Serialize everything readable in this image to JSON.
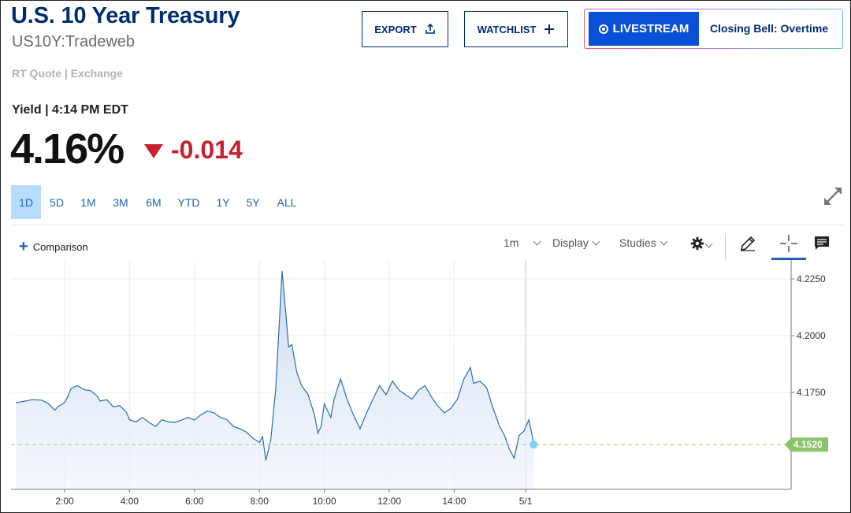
{
  "header": {
    "title": "U.S. 10 Year Treasury",
    "symbol": "US10Y:Tradeweb",
    "quote_source": "RT Quote | Exchange",
    "export_label": "EXPORT",
    "watchlist_label": "WATCHLIST",
    "livestream_label": "LIVESTREAM",
    "livestream_show": "Closing Bell: Overtime"
  },
  "quote": {
    "label": "Yield | 4:14 PM EDT",
    "price": "4.16%",
    "change": "-0.014",
    "change_color": "#c8202f"
  },
  "ranges": [
    {
      "label": "1D",
      "active": true
    },
    {
      "label": "5D",
      "active": false
    },
    {
      "label": "1M",
      "active": false
    },
    {
      "label": "3M",
      "active": false
    },
    {
      "label": "6M",
      "active": false
    },
    {
      "label": "YTD",
      "active": false
    },
    {
      "label": "1Y",
      "active": false
    },
    {
      "label": "5Y",
      "active": false
    },
    {
      "label": "ALL",
      "active": false
    }
  ],
  "toolbar": {
    "comparison_label": "Comparison",
    "interval_label": "1m",
    "display_label": "Display",
    "studies_label": "Studies",
    "icons": [
      "gear-icon",
      "pencil-icon",
      "crosshair-icon",
      "comment-icon",
      "expand-icon"
    ]
  },
  "colors": {
    "brand": "#002d72",
    "accent": "#1d64b5",
    "live": "#0a50d6",
    "line": "#2a6db0",
    "last_tag": "#8cc26a"
  },
  "chart_data": {
    "type": "area",
    "x_ticks": [
      "2:00",
      "4:00",
      "6:00",
      "8:00",
      "10:00",
      "12:00",
      "14:00",
      "5/1"
    ],
    "y_ticks": [
      "4.2250",
      "4.2000",
      "4.1750"
    ],
    "ylim": [
      4.143,
      4.232
    ],
    "last_value_label": "4.1520",
    "last_value": 4.152,
    "grid": true,
    "points": [
      [
        0.5,
        4.1704
      ],
      [
        0.8,
        4.1712
      ],
      [
        1.0,
        4.1718
      ],
      [
        1.3,
        4.1716
      ],
      [
        1.5,
        4.17
      ],
      [
        1.7,
        4.1672
      ],
      [
        1.8,
        4.1688
      ],
      [
        2.0,
        4.1706
      ],
      [
        2.1,
        4.1732
      ],
      [
        2.2,
        4.1768
      ],
      [
        2.4,
        4.178
      ],
      [
        2.6,
        4.1762
      ],
      [
        2.8,
        4.1758
      ],
      [
        3.0,
        4.1734
      ],
      [
        3.1,
        4.1712
      ],
      [
        3.3,
        4.1718
      ],
      [
        3.5,
        4.1686
      ],
      [
        3.7,
        4.1692
      ],
      [
        3.9,
        4.1664
      ],
      [
        4.0,
        4.163
      ],
      [
        4.2,
        4.162
      ],
      [
        4.4,
        4.164
      ],
      [
        4.6,
        4.1618
      ],
      [
        4.8,
        4.16
      ],
      [
        5.0,
        4.163
      ],
      [
        5.2,
        4.162
      ],
      [
        5.4,
        4.1618
      ],
      [
        5.6,
        4.1628
      ],
      [
        5.8,
        4.164
      ],
      [
        6.0,
        4.1628
      ],
      [
        6.2,
        4.1652
      ],
      [
        6.4,
        4.1668
      ],
      [
        6.6,
        4.166
      ],
      [
        6.8,
        4.164
      ],
      [
        7.0,
        4.163
      ],
      [
        7.2,
        4.16
      ],
      [
        7.4,
        4.159
      ],
      [
        7.6,
        4.1575
      ],
      [
        7.8,
        4.1548
      ],
      [
        8.0,
        4.153
      ],
      [
        8.1,
        4.1555
      ],
      [
        8.2,
        4.145
      ],
      [
        8.35,
        4.154
      ],
      [
        8.5,
        4.176
      ],
      [
        8.6,
        4.202
      ],
      [
        8.7,
        4.2285
      ],
      [
        8.8,
        4.212
      ],
      [
        8.9,
        4.195
      ],
      [
        9.0,
        4.196
      ],
      [
        9.15,
        4.184
      ],
      [
        9.3,
        4.178
      ],
      [
        9.5,
        4.174
      ],
      [
        9.7,
        4.165
      ],
      [
        9.8,
        4.157
      ],
      [
        9.9,
        4.16
      ],
      [
        10.0,
        4.17
      ],
      [
        10.2,
        4.164
      ],
      [
        10.3,
        4.172
      ],
      [
        10.5,
        4.181
      ],
      [
        10.7,
        4.172
      ],
      [
        10.9,
        4.165
      ],
      [
        11.1,
        4.159
      ],
      [
        11.3,
        4.166
      ],
      [
        11.5,
        4.172
      ],
      [
        11.7,
        4.178
      ],
      [
        11.9,
        4.174
      ],
      [
        12.1,
        4.18
      ],
      [
        12.3,
        4.176
      ],
      [
        12.5,
        4.174
      ],
      [
        12.7,
        4.172
      ],
      [
        12.9,
        4.176
      ],
      [
        13.1,
        4.178
      ],
      [
        13.3,
        4.173
      ],
      [
        13.5,
        4.169
      ],
      [
        13.7,
        4.166
      ],
      [
        13.9,
        4.168
      ],
      [
        14.1,
        4.172
      ],
      [
        14.3,
        4.181
      ],
      [
        14.5,
        4.186
      ],
      [
        14.6,
        4.179
      ],
      [
        14.8,
        4.18
      ],
      [
        15.0,
        4.177
      ],
      [
        15.2,
        4.168
      ],
      [
        15.4,
        4.16
      ],
      [
        15.55,
        4.156
      ],
      [
        15.7,
        4.15
      ],
      [
        15.85,
        4.146
      ],
      [
        16.0,
        4.156
      ],
      [
        16.15,
        4.158
      ],
      [
        16.3,
        4.163
      ],
      [
        16.4,
        4.156
      ],
      [
        16.45,
        4.152
      ]
    ]
  }
}
